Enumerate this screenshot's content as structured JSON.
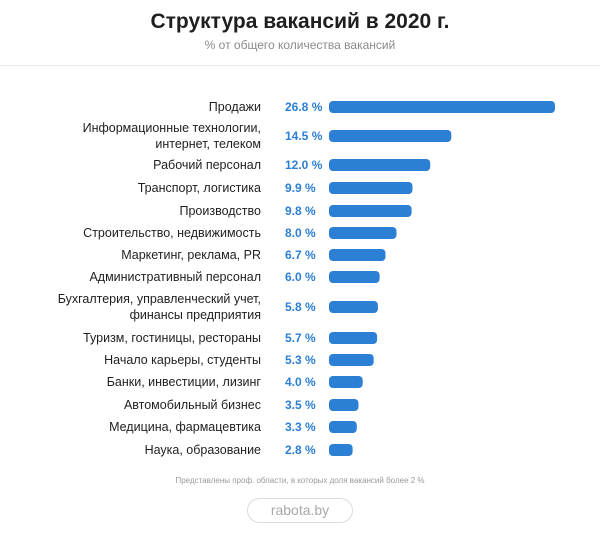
{
  "header": {
    "title": "Структура вакансий в 2020 г.",
    "subtitle": "% от общего количества вакансий"
  },
  "footer": {
    "note": "Представлены проф. области, в которых доля вакансий более 2 %",
    "brand": "rabota.by"
  },
  "colors": {
    "bar": "#2b7fd4",
    "value_text": "#2b7fd4",
    "label_text": "#1f1f1f"
  },
  "chart_data": {
    "type": "bar",
    "orientation": "horizontal",
    "title": "Структура вакансий в 2020 г.",
    "subtitle": "% от общего количества вакансий",
    "categories": [
      [
        "Продажи"
      ],
      [
        "Информационные технологии,",
        "интернет, телеком"
      ],
      [
        "Рабочий персонал"
      ],
      [
        "Транспорт, логистика"
      ],
      [
        "Производство"
      ],
      [
        "Строительство, недвижимость"
      ],
      [
        "Маркетинг, реклама, PR"
      ],
      [
        "Административный персонал"
      ],
      [
        "Бухгалтерия, управленческий учет,",
        "финансы предприятия"
      ],
      [
        "Туризм, гостиницы, рестораны"
      ],
      [
        "Начало карьеры, студенты"
      ],
      [
        "Банки, инвестиции, лизинг"
      ],
      [
        "Автомобильный бизнес"
      ],
      [
        "Медицина, фармацевтика"
      ],
      [
        "Наука, образование"
      ]
    ],
    "values": [
      26.8,
      14.5,
      12.0,
      9.9,
      9.8,
      8.0,
      6.7,
      6.0,
      5.8,
      5.7,
      5.3,
      4.0,
      3.5,
      3.3,
      2.8
    ],
    "value_labels": [
      "26.8 %",
      "14.5 %",
      "12.0 %",
      "9.9 %",
      "9.8 %",
      "8.0 %",
      "6.7 %",
      "6.0 %",
      "5.8 %",
      "5.7 %",
      "5.3 %",
      "4.0 %",
      "3.5 %",
      "3.3 %",
      "2.8 %"
    ],
    "xlim": [
      0,
      26.8
    ],
    "grid": false,
    "legend": "none"
  }
}
